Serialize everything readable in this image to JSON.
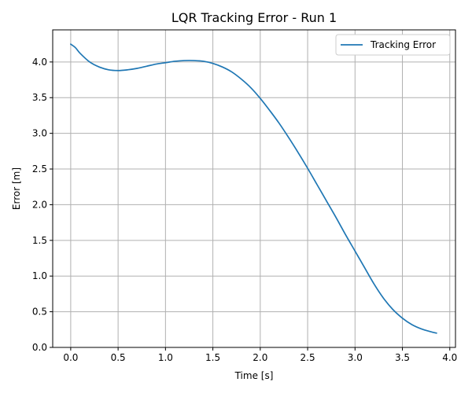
{
  "chart_data": {
    "type": "line",
    "title": "LQR Tracking Error - Run 1",
    "xlabel": "Time [s]",
    "ylabel": "Error [m]",
    "xlim": [
      -0.19,
      4.06
    ],
    "ylim": [
      0.0,
      4.45
    ],
    "xticks": [
      0.0,
      0.5,
      1.0,
      1.5,
      2.0,
      2.5,
      3.0,
      3.5,
      4.0
    ],
    "xtick_labels": [
      "0.0",
      "0.5",
      "1.0",
      "1.5",
      "2.0",
      "2.5",
      "3.0",
      "3.5",
      "4.0"
    ],
    "yticks": [
      0.0,
      0.5,
      1.0,
      1.5,
      2.0,
      2.5,
      3.0,
      3.5,
      4.0
    ],
    "ytick_labels": [
      "0.0",
      "0.5",
      "1.0",
      "1.5",
      "2.0",
      "2.5",
      "3.0",
      "3.5",
      "4.0"
    ],
    "grid": true,
    "legend": "top-right",
    "series": [
      {
        "name": "Tracking Error",
        "color": "#1f77b4",
        "x": [
          0.0,
          0.05,
          0.1,
          0.2,
          0.3,
          0.4,
          0.5,
          0.6,
          0.7,
          0.8,
          0.9,
          1.0,
          1.1,
          1.2,
          1.3,
          1.4,
          1.5,
          1.6,
          1.7,
          1.8,
          1.9,
          2.0,
          2.1,
          2.2,
          2.3,
          2.4,
          2.5,
          2.6,
          2.7,
          2.8,
          2.9,
          3.0,
          3.1,
          3.2,
          3.3,
          3.4,
          3.5,
          3.6,
          3.7,
          3.8,
          3.86
        ],
        "y": [
          4.25,
          4.2,
          4.12,
          4.0,
          3.93,
          3.89,
          3.88,
          3.89,
          3.91,
          3.94,
          3.97,
          3.99,
          4.01,
          4.02,
          4.02,
          4.01,
          3.98,
          3.93,
          3.86,
          3.76,
          3.64,
          3.49,
          3.32,
          3.14,
          2.94,
          2.73,
          2.51,
          2.28,
          2.05,
          1.82,
          1.58,
          1.35,
          1.12,
          0.89,
          0.69,
          0.53,
          0.41,
          0.32,
          0.26,
          0.22,
          0.2
        ]
      }
    ]
  }
}
